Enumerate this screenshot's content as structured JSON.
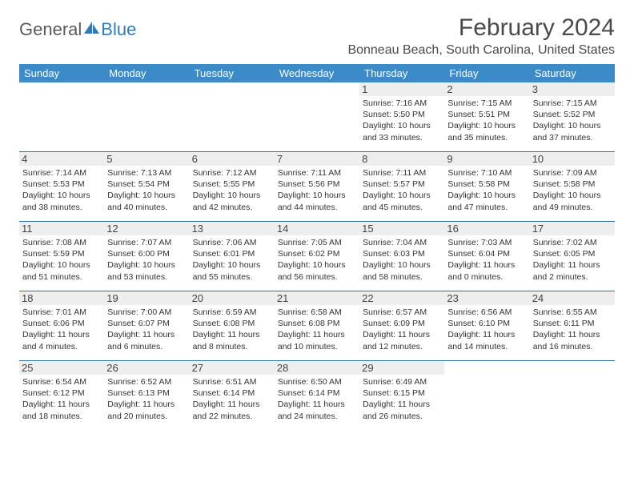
{
  "logo": {
    "general": "General",
    "blue": "Blue"
  },
  "title": "February 2024",
  "location": "Bonneau Beach, South Carolina, United States",
  "colors": {
    "header_bg": "#3b8bc9",
    "header_text": "#ffffff",
    "week_border": "#2f6fa8",
    "daynum_bg": "#eeeeee",
    "text": "#333333",
    "logo_gray": "#5a5a5a",
    "logo_blue": "#2f7bbf"
  },
  "day_headers": [
    "Sunday",
    "Monday",
    "Tuesday",
    "Wednesday",
    "Thursday",
    "Friday",
    "Saturday"
  ],
  "weeks": [
    [
      {
        "empty": true
      },
      {
        "empty": true
      },
      {
        "empty": true
      },
      {
        "empty": true
      },
      {
        "n": "1",
        "sunrise": "Sunrise: 7:16 AM",
        "sunset": "Sunset: 5:50 PM",
        "day1": "Daylight: 10 hours",
        "day2": "and 33 minutes."
      },
      {
        "n": "2",
        "sunrise": "Sunrise: 7:15 AM",
        "sunset": "Sunset: 5:51 PM",
        "day1": "Daylight: 10 hours",
        "day2": "and 35 minutes."
      },
      {
        "n": "3",
        "sunrise": "Sunrise: 7:15 AM",
        "sunset": "Sunset: 5:52 PM",
        "day1": "Daylight: 10 hours",
        "day2": "and 37 minutes."
      }
    ],
    [
      {
        "n": "4",
        "sunrise": "Sunrise: 7:14 AM",
        "sunset": "Sunset: 5:53 PM",
        "day1": "Daylight: 10 hours",
        "day2": "and 38 minutes."
      },
      {
        "n": "5",
        "sunrise": "Sunrise: 7:13 AM",
        "sunset": "Sunset: 5:54 PM",
        "day1": "Daylight: 10 hours",
        "day2": "and 40 minutes."
      },
      {
        "n": "6",
        "sunrise": "Sunrise: 7:12 AM",
        "sunset": "Sunset: 5:55 PM",
        "day1": "Daylight: 10 hours",
        "day2": "and 42 minutes."
      },
      {
        "n": "7",
        "sunrise": "Sunrise: 7:11 AM",
        "sunset": "Sunset: 5:56 PM",
        "day1": "Daylight: 10 hours",
        "day2": "and 44 minutes."
      },
      {
        "n": "8",
        "sunrise": "Sunrise: 7:11 AM",
        "sunset": "Sunset: 5:57 PM",
        "day1": "Daylight: 10 hours",
        "day2": "and 45 minutes."
      },
      {
        "n": "9",
        "sunrise": "Sunrise: 7:10 AM",
        "sunset": "Sunset: 5:58 PM",
        "day1": "Daylight: 10 hours",
        "day2": "and 47 minutes."
      },
      {
        "n": "10",
        "sunrise": "Sunrise: 7:09 AM",
        "sunset": "Sunset: 5:58 PM",
        "day1": "Daylight: 10 hours",
        "day2": "and 49 minutes."
      }
    ],
    [
      {
        "n": "11",
        "sunrise": "Sunrise: 7:08 AM",
        "sunset": "Sunset: 5:59 PM",
        "day1": "Daylight: 10 hours",
        "day2": "and 51 minutes."
      },
      {
        "n": "12",
        "sunrise": "Sunrise: 7:07 AM",
        "sunset": "Sunset: 6:00 PM",
        "day1": "Daylight: 10 hours",
        "day2": "and 53 minutes."
      },
      {
        "n": "13",
        "sunrise": "Sunrise: 7:06 AM",
        "sunset": "Sunset: 6:01 PM",
        "day1": "Daylight: 10 hours",
        "day2": "and 55 minutes."
      },
      {
        "n": "14",
        "sunrise": "Sunrise: 7:05 AM",
        "sunset": "Sunset: 6:02 PM",
        "day1": "Daylight: 10 hours",
        "day2": "and 56 minutes."
      },
      {
        "n": "15",
        "sunrise": "Sunrise: 7:04 AM",
        "sunset": "Sunset: 6:03 PM",
        "day1": "Daylight: 10 hours",
        "day2": "and 58 minutes."
      },
      {
        "n": "16",
        "sunrise": "Sunrise: 7:03 AM",
        "sunset": "Sunset: 6:04 PM",
        "day1": "Daylight: 11 hours",
        "day2": "and 0 minutes."
      },
      {
        "n": "17",
        "sunrise": "Sunrise: 7:02 AM",
        "sunset": "Sunset: 6:05 PM",
        "day1": "Daylight: 11 hours",
        "day2": "and 2 minutes."
      }
    ],
    [
      {
        "n": "18",
        "sunrise": "Sunrise: 7:01 AM",
        "sunset": "Sunset: 6:06 PM",
        "day1": "Daylight: 11 hours",
        "day2": "and 4 minutes."
      },
      {
        "n": "19",
        "sunrise": "Sunrise: 7:00 AM",
        "sunset": "Sunset: 6:07 PM",
        "day1": "Daylight: 11 hours",
        "day2": "and 6 minutes."
      },
      {
        "n": "20",
        "sunrise": "Sunrise: 6:59 AM",
        "sunset": "Sunset: 6:08 PM",
        "day1": "Daylight: 11 hours",
        "day2": "and 8 minutes."
      },
      {
        "n": "21",
        "sunrise": "Sunrise: 6:58 AM",
        "sunset": "Sunset: 6:08 PM",
        "day1": "Daylight: 11 hours",
        "day2": "and 10 minutes."
      },
      {
        "n": "22",
        "sunrise": "Sunrise: 6:57 AM",
        "sunset": "Sunset: 6:09 PM",
        "day1": "Daylight: 11 hours",
        "day2": "and 12 minutes."
      },
      {
        "n": "23",
        "sunrise": "Sunrise: 6:56 AM",
        "sunset": "Sunset: 6:10 PM",
        "day1": "Daylight: 11 hours",
        "day2": "and 14 minutes."
      },
      {
        "n": "24",
        "sunrise": "Sunrise: 6:55 AM",
        "sunset": "Sunset: 6:11 PM",
        "day1": "Daylight: 11 hours",
        "day2": "and 16 minutes."
      }
    ],
    [
      {
        "n": "25",
        "sunrise": "Sunrise: 6:54 AM",
        "sunset": "Sunset: 6:12 PM",
        "day1": "Daylight: 11 hours",
        "day2": "and 18 minutes."
      },
      {
        "n": "26",
        "sunrise": "Sunrise: 6:52 AM",
        "sunset": "Sunset: 6:13 PM",
        "day1": "Daylight: 11 hours",
        "day2": "and 20 minutes."
      },
      {
        "n": "27",
        "sunrise": "Sunrise: 6:51 AM",
        "sunset": "Sunset: 6:14 PM",
        "day1": "Daylight: 11 hours",
        "day2": "and 22 minutes."
      },
      {
        "n": "28",
        "sunrise": "Sunrise: 6:50 AM",
        "sunset": "Sunset: 6:14 PM",
        "day1": "Daylight: 11 hours",
        "day2": "and 24 minutes."
      },
      {
        "n": "29",
        "sunrise": "Sunrise: 6:49 AM",
        "sunset": "Sunset: 6:15 PM",
        "day1": "Daylight: 11 hours",
        "day2": "and 26 minutes."
      },
      {
        "empty": true
      },
      {
        "empty": true
      }
    ]
  ]
}
